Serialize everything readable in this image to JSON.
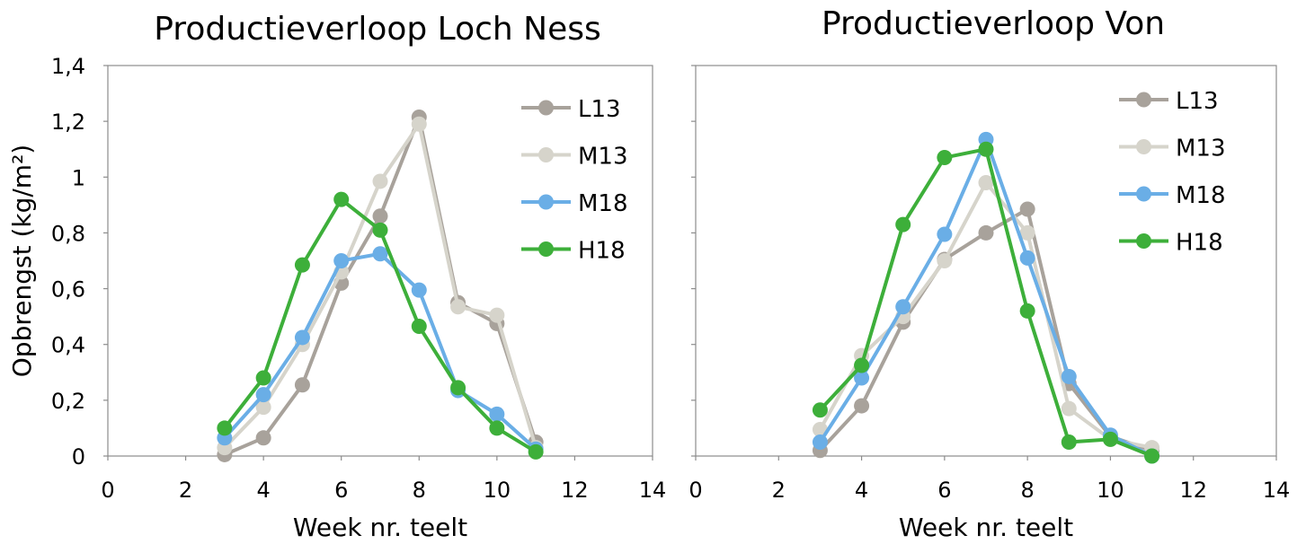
{
  "chart_data": [
    {
      "type": "line",
      "title": "Productieverloop Loch Ness",
      "xlabel": "Week nr. teelt",
      "ylabel": "Opbrengst (kg/m²)",
      "xlim": [
        0,
        14
      ],
      "ylim": [
        0,
        1.4
      ],
      "xticks": [
        "0",
        "2",
        "4",
        "6",
        "8",
        "10",
        "12",
        "14"
      ],
      "yticks": [
        "0",
        "0,2",
        "0,4",
        "0,6",
        "0,8",
        "1",
        "1,2",
        "1,4"
      ],
      "grid": false,
      "legend_position": "top-right",
      "x": [
        3,
        4,
        5,
        6,
        7,
        8,
        9,
        10,
        11
      ],
      "series": [
        {
          "name": "L13",
          "color": "#a8a29b",
          "values": [
            0.005,
            0.065,
            0.255,
            0.62,
            0.86,
            1.215,
            0.55,
            0.475,
            0.05
          ]
        },
        {
          "name": "M13",
          "color": "#d6d4cb",
          "values": [
            0.03,
            0.175,
            0.4,
            0.66,
            0.985,
            1.19,
            0.535,
            0.505,
            0.03
          ]
        },
        {
          "name": "M18",
          "color": "#6aaee6",
          "values": [
            0.065,
            0.22,
            0.425,
            0.7,
            0.725,
            0.595,
            0.235,
            0.15,
            0.025
          ]
        },
        {
          "name": "H18",
          "color": "#3daf3a",
          "values": [
            0.1,
            0.28,
            0.685,
            0.92,
            0.81,
            0.465,
            0.245,
            0.1,
            0.015
          ]
        }
      ]
    },
    {
      "type": "line",
      "title": "Productieverloop Von",
      "xlabel": "Week nr. teelt",
      "ylabel": "",
      "xlim": [
        0,
        14
      ],
      "ylim": [
        0,
        1.4
      ],
      "xticks": [
        "0",
        "2",
        "4",
        "6",
        "8",
        "10",
        "12",
        "14"
      ],
      "yticks": [],
      "grid": false,
      "legend_position": "top-right",
      "x": [
        3,
        4,
        5,
        6,
        7,
        8,
        9,
        10,
        11
      ],
      "series": [
        {
          "name": "L13",
          "color": "#a8a29b",
          "values": [
            0.02,
            0.18,
            0.48,
            0.705,
            0.8,
            0.885,
            0.26,
            0.07,
            0.02
          ]
        },
        {
          "name": "M13",
          "color": "#d6d4cb",
          "values": [
            0.095,
            0.36,
            0.5,
            0.7,
            0.98,
            0.8,
            0.17,
            0.06,
            0.03
          ]
        },
        {
          "name": "M18",
          "color": "#6aaee6",
          "values": [
            0.05,
            0.28,
            0.535,
            0.795,
            1.135,
            0.71,
            0.285,
            0.075,
            0.0
          ]
        },
        {
          "name": "H18",
          "color": "#3daf3a",
          "values": [
            0.165,
            0.325,
            0.83,
            1.07,
            1.1,
            0.52,
            0.05,
            0.06,
            0.0
          ]
        }
      ]
    }
  ]
}
